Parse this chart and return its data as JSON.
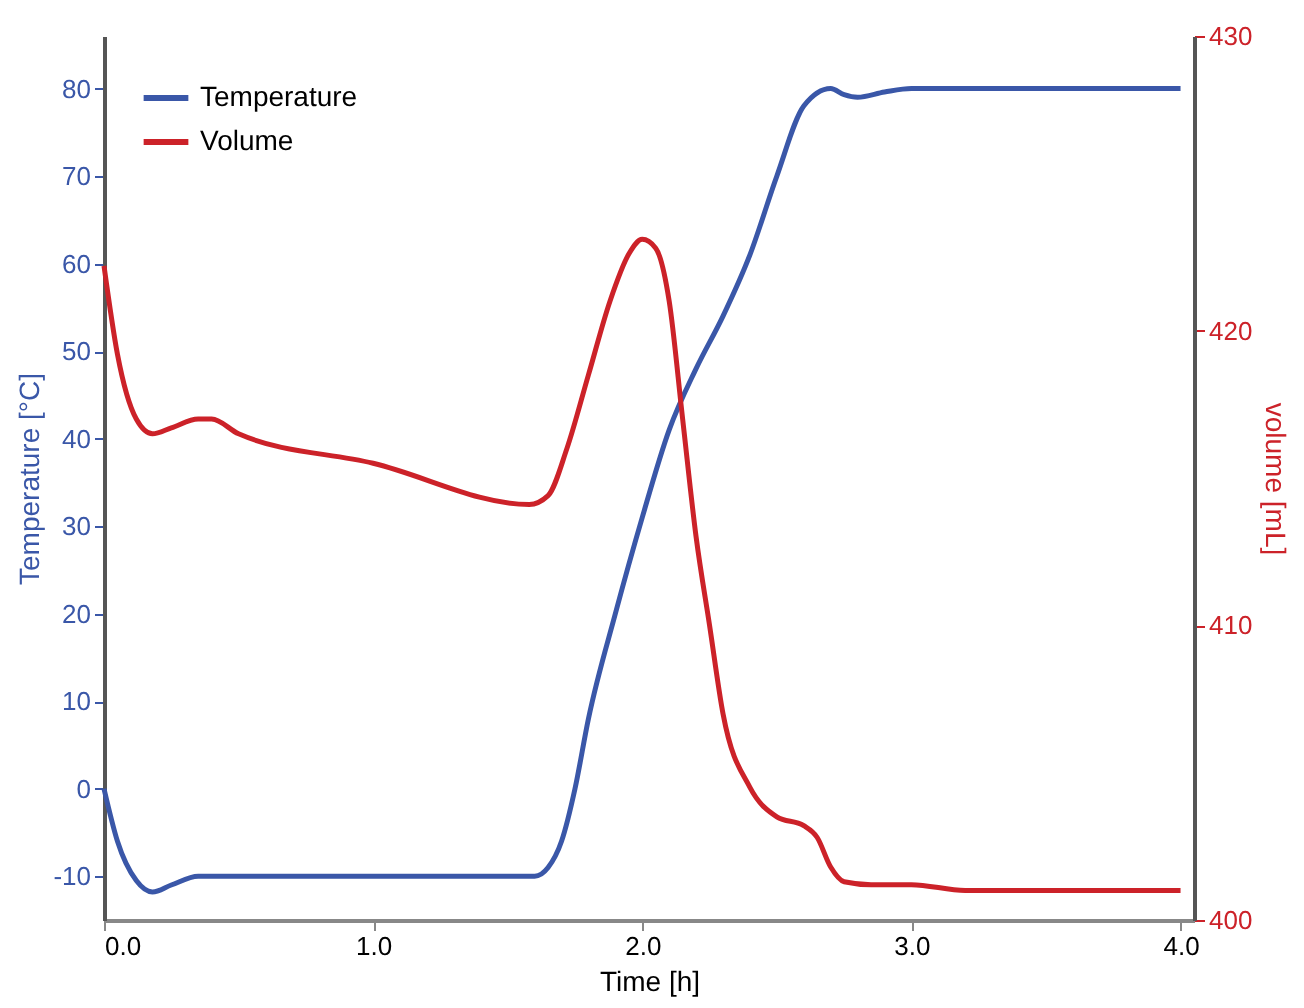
{
  "chart_data": {
    "type": "line",
    "xlabel": "Time [h]",
    "ylabel": "Temperature [°C]",
    "y2label": "volume [mL]",
    "xlim": [
      0,
      4.05
    ],
    "xticks": [
      {
        "value": 0,
        "label": "0.0"
      },
      {
        "value": 1,
        "label": "1.0"
      },
      {
        "value": 2,
        "label": "2.0"
      },
      {
        "value": 3,
        "label": "3.0"
      },
      {
        "value": 4,
        "label": "4.0"
      }
    ],
    "ylim": [
      -15,
      86
    ],
    "yticks": [
      -10,
      0,
      10,
      20,
      30,
      40,
      50,
      60,
      70,
      80
    ],
    "y2lim": [
      400,
      430
    ],
    "y2ticks": [
      400,
      410,
      420,
      430
    ],
    "grid": false,
    "legend": "top left",
    "line_style": "solid",
    "marker": "none",
    "series": [
      {
        "name": "Temperature",
        "color": "#3a57a8",
        "axis": "y",
        "x": [
          0,
          0.05,
          0.12,
          0.18,
          0.25,
          0.35,
          0.5,
          1.0,
          1.5,
          1.6,
          1.65,
          1.7,
          1.75,
          1.8,
          1.9,
          2.0,
          2.1,
          2.2,
          2.3,
          2.4,
          2.5,
          2.6,
          2.7,
          2.75,
          2.8,
          2.9,
          3.0,
          3.5,
          4.0
        ],
        "values": [
          0,
          -6,
          -10.5,
          -11.8,
          -11,
          -10,
          -10,
          -10,
          -10,
          -10,
          -9,
          -6,
          0,
          8,
          20,
          31,
          41,
          48,
          54,
          61,
          70,
          78,
          80,
          79.3,
          79,
          79.6,
          80,
          80,
          80
        ]
      },
      {
        "name": "Volume",
        "color": "#cc2229",
        "axis": "y2",
        "x": [
          0,
          0.05,
          0.12,
          0.18,
          0.25,
          0.35,
          0.4,
          0.5,
          1.0,
          1.58,
          1.65,
          1.72,
          1.8,
          1.88,
          1.95,
          2.0,
          2.05,
          2.1,
          2.15,
          2.2,
          2.25,
          2.3,
          2.4,
          2.5,
          2.6,
          2.65,
          2.7,
          2.75,
          2.85,
          3.0,
          3.2,
          4.0
        ],
        "values": [
          422.2,
          419.2,
          417.0,
          416.5,
          416.7,
          417,
          417,
          416.5,
          415.5,
          414.1,
          414.4,
          416,
          418.5,
          421,
          422.6,
          423.1,
          422.8,
          421,
          417,
          413,
          410,
          407,
          404.5,
          403.5,
          403.2,
          402.8,
          401.8,
          401.3,
          401.2,
          401.2,
          401,
          401
        ]
      }
    ]
  }
}
